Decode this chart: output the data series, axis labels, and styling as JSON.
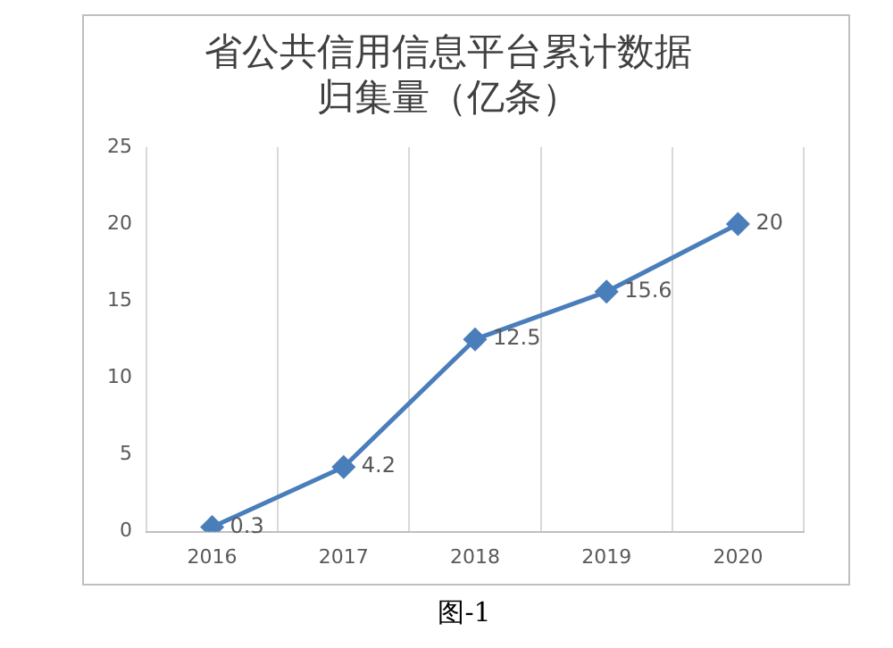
{
  "chart_data": {
    "type": "line",
    "title": "省公共信用信息平台累计数据归集量（亿条）",
    "categories": [
      "2016",
      "2017",
      "2018",
      "2019",
      "2020"
    ],
    "values": [
      0.3,
      4.2,
      12.5,
      15.6,
      20
    ],
    "color": "#4a7ebb",
    "ylim": [
      0,
      25
    ],
    "yticks": [
      0,
      5,
      10,
      15,
      20,
      25
    ],
    "grid": "x",
    "legend": false,
    "marker": "diamond",
    "line_style": "solid",
    "data_labels": true,
    "annotations": [
      "图-1"
    ]
  }
}
